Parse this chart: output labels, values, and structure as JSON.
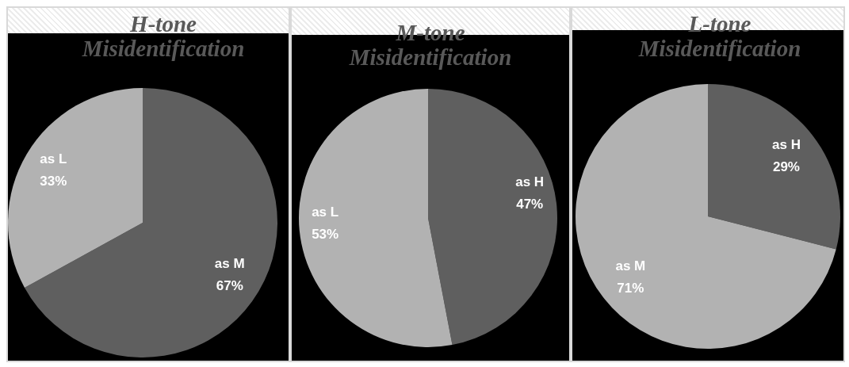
{
  "chart_data": [
    {
      "type": "pie",
      "title": "H-tone Misidentification",
      "categories": [
        "as M",
        "as L"
      ],
      "values": [
        67,
        33
      ],
      "colors": [
        "#5f5f5f",
        "#b2b2b2"
      ],
      "value_labels": [
        "67%",
        "33%"
      ]
    },
    {
      "type": "pie",
      "title": "M-tone Misidentification",
      "categories": [
        "as H",
        "as L"
      ],
      "values": [
        47,
        53
      ],
      "colors": [
        "#5f5f5f",
        "#b2b2b2"
      ],
      "value_labels": [
        "47%",
        "53%"
      ]
    },
    {
      "type": "pie",
      "title": "L-tone Misidentification",
      "categories": [
        "as H",
        "as M"
      ],
      "values": [
        29,
        71
      ],
      "colors": [
        "#5f5f5f",
        "#b2b2b2"
      ],
      "value_labels": [
        "29%",
        "71%"
      ]
    }
  ]
}
